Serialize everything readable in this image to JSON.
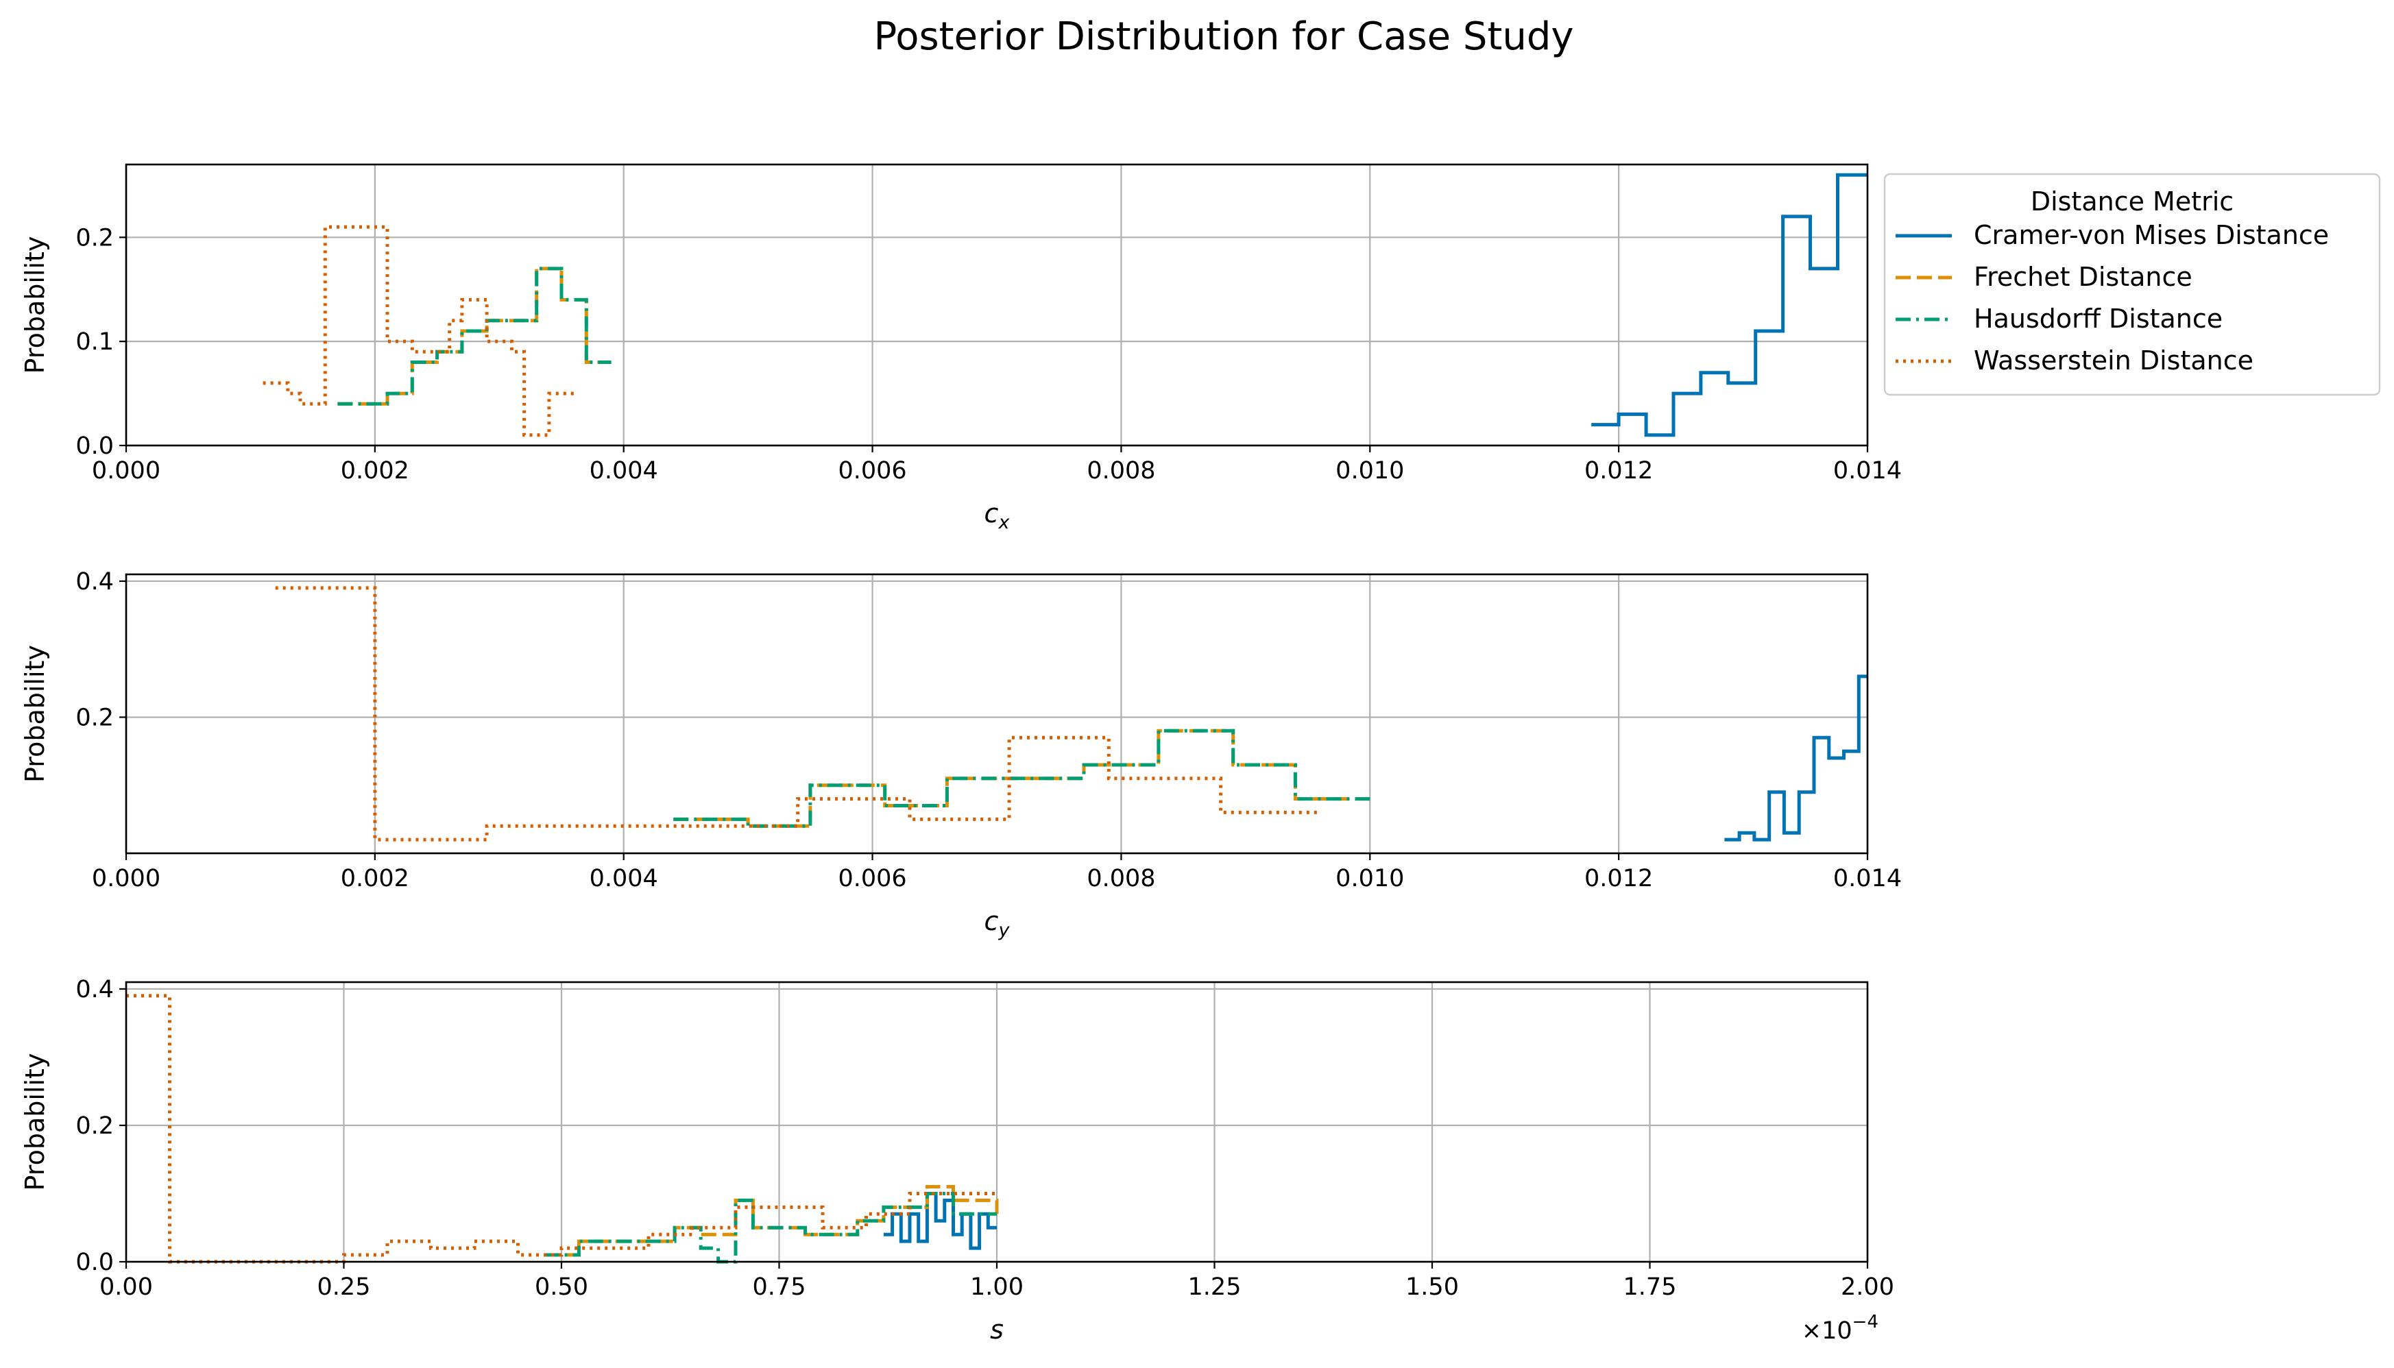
{
  "chart_data": {
    "type": "step",
    "title": "Posterior Distribution for Case Study",
    "legend": {
      "title": "Distance Metric",
      "placement": "outside-right-top",
      "entries": [
        {
          "name": "Cramer-von Mises Distance",
          "color": "#0173b2",
          "dash": "solid"
        },
        {
          "name": "Frechet Distance",
          "color": "#de8f05",
          "dash": "dashed"
        },
        {
          "name": "Hausdorff Distance",
          "color": "#029e73",
          "dash": "dashdot"
        },
        {
          "name": "Wasserstein Distance",
          "color": "#d55e00",
          "dash": "dotted"
        }
      ]
    },
    "subplots": [
      {
        "xlabel": "c",
        "xlabel_sub": "x",
        "ylabel": "Probability",
        "xlim": [
          0,
          0.014
        ],
        "ylim": [
          0,
          0.27
        ],
        "xticks": [
          0,
          0.002,
          0.004,
          0.006,
          0.008,
          0.01,
          0.012,
          0.014
        ],
        "xtick_labels": [
          "0.000",
          "0.002",
          "0.004",
          "0.006",
          "0.008",
          "0.010",
          "0.012",
          "0.014"
        ],
        "yticks": [
          0,
          0.1,
          0.2
        ],
        "ytick_labels": [
          "0.0",
          "0.1",
          "0.2"
        ],
        "grid": true,
        "series": [
          {
            "name": "Cramer-von Mises Distance",
            "x": [
              0.01178,
              0.012,
              0.01222,
              0.01244,
              0.01266,
              0.01288,
              0.0131,
              0.01332,
              0.01354,
              0.01376,
              0.014
            ],
            "y": [
              0.02,
              0.03,
              0.01,
              0.05,
              0.07,
              0.06,
              0.11,
              0.22,
              0.17,
              0.26
            ]
          },
          {
            "name": "Frechet Distance",
            "x": [
              0.0017,
              0.0019,
              0.0021,
              0.0023,
              0.0025,
              0.0027,
              0.0029,
              0.0031,
              0.0033,
              0.0035,
              0.0037,
              0.0039
            ],
            "y": [
              0.04,
              0.04,
              0.05,
              0.08,
              0.09,
              0.11,
              0.12,
              0.12,
              0.17,
              0.14,
              0.08
            ]
          },
          {
            "name": "Hausdorff Distance",
            "x": [
              0.0017,
              0.0019,
              0.0021,
              0.0023,
              0.0025,
              0.0027,
              0.0029,
              0.0031,
              0.0033,
              0.0035,
              0.0037,
              0.0039
            ],
            "y": [
              0.04,
              0.04,
              0.05,
              0.08,
              0.09,
              0.11,
              0.12,
              0.12,
              0.17,
              0.14,
              0.08
            ]
          },
          {
            "name": "Wasserstein Distance",
            "x": [
              0.0011,
              0.0013,
              0.0014,
              0.0016,
              0.0021,
              0.0023,
              0.0026,
              0.0027,
              0.0029,
              0.0031,
              0.0032,
              0.0034,
              0.0036
            ],
            "y": [
              0.06,
              0.05,
              0.04,
              0.21,
              0.1,
              0.09,
              0.12,
              0.14,
              0.1,
              0.09,
              0.01,
              0.05
            ]
          }
        ]
      },
      {
        "xlabel": "c",
        "xlabel_sub": "y",
        "ylabel": "Probability",
        "xlim": [
          0,
          0.014
        ],
        "ylim": [
          0,
          0.41
        ],
        "xticks": [
          0,
          0.002,
          0.004,
          0.006,
          0.008,
          0.01,
          0.012,
          0.014
        ],
        "xtick_labels": [
          "0.000",
          "0.002",
          "0.004",
          "0.006",
          "0.008",
          "0.010",
          "0.012",
          "0.014"
        ],
        "yticks": [
          0.2,
          0.4
        ],
        "ytick_labels": [
          "0.2",
          "0.4"
        ],
        "grid": true,
        "series": [
          {
            "name": "Cramer-von Mises Distance",
            "x": [
              0.01285,
              0.01297,
              0.01309,
              0.01321,
              0.01333,
              0.01345,
              0.01357,
              0.01369,
              0.01381,
              0.01393,
              0.014
            ],
            "y": [
              0.02,
              0.03,
              0.02,
              0.09,
              0.03,
              0.09,
              0.17,
              0.14,
              0.15,
              0.26
            ]
          },
          {
            "name": "Frechet Distance",
            "x": [
              0.0044,
              0.005,
              0.0055,
              0.0061,
              0.0066,
              0.0072,
              0.0077,
              0.0083,
              0.0089,
              0.0094,
              0.01
            ],
            "y": [
              0.05,
              0.04,
              0.1,
              0.07,
              0.11,
              0.11,
              0.13,
              0.18,
              0.13,
              0.08
            ]
          },
          {
            "name": "Hausdorff Distance",
            "x": [
              0.0044,
              0.005,
              0.0055,
              0.0061,
              0.0066,
              0.0072,
              0.0077,
              0.0083,
              0.0089,
              0.0094,
              0.01
            ],
            "y": [
              0.05,
              0.04,
              0.1,
              0.07,
              0.11,
              0.11,
              0.13,
              0.18,
              0.13,
              0.08
            ]
          },
          {
            "name": "Wasserstein Distance",
            "x": [
              0.0012,
              0.002,
              0.0029,
              0.0038,
              0.0046,
              0.0054,
              0.0063,
              0.0071,
              0.0079,
              0.0088,
              0.0096
            ],
            "y": [
              0.39,
              0.02,
              0.04,
              0.04,
              0.04,
              0.08,
              0.05,
              0.17,
              0.11,
              0.06
            ]
          }
        ]
      },
      {
        "xlabel": "s",
        "xlabel_sub": "",
        "ylabel": "Probability",
        "xlim": [
          0,
          2.0
        ],
        "ylim": [
          0,
          0.41
        ],
        "offset_text": "×10",
        "offset_exp": "−4",
        "xticks": [
          0,
          0.25,
          0.5,
          0.75,
          1.0,
          1.25,
          1.5,
          1.75,
          2.0
        ],
        "xtick_labels": [
          "0.00",
          "0.25",
          "0.50",
          "0.75",
          "1.00",
          "1.25",
          "1.50",
          "1.75",
          "2.00"
        ],
        "yticks": [
          0,
          0.2,
          0.4
        ],
        "ytick_labels": [
          "0.0",
          "0.2",
          "0.4"
        ],
        "grid": true,
        "series": [
          {
            "name": "Cramer-von Mises Distance",
            "x": [
              0.87,
              0.88,
              0.89,
              0.9,
              0.91,
              0.92,
              0.93,
              0.94,
              0.95,
              0.96,
              0.97,
              0.98,
              0.99,
              1.0
            ],
            "y": [
              0.04,
              0.07,
              0.03,
              0.07,
              0.03,
              0.1,
              0.06,
              0.09,
              0.04,
              0.07,
              0.02,
              0.07,
              0.05
            ]
          },
          {
            "name": "Frechet Distance",
            "x": [
              0.48,
              0.52,
              0.6,
              0.63,
              0.66,
              0.7,
              0.72,
              0.75,
              0.78,
              0.84,
              0.87,
              0.92,
              0.95,
              1.0
            ],
            "y": [
              0.01,
              0.03,
              0.03,
              0.05,
              0.04,
              0.09,
              0.05,
              0.05,
              0.04,
              0.06,
              0.08,
              0.11,
              0.09,
              0.07
            ]
          },
          {
            "name": "Hausdorff Distance",
            "x": [
              0.48,
              0.52,
              0.6,
              0.63,
              0.66,
              0.68,
              0.7,
              0.72,
              0.75,
              0.78,
              0.84,
              0.87,
              0.92,
              0.95,
              1.0
            ],
            "y": [
              0.01,
              0.03,
              0.03,
              0.05,
              0.02,
              0.0,
              0.09,
              0.05,
              0.05,
              0.04,
              0.06,
              0.08,
              0.1,
              0.07
            ]
          },
          {
            "name": "Wasserstein Distance",
            "x": [
              0,
              0.05,
              0.1,
              0.25,
              0.3,
              0.35,
              0.4,
              0.45,
              0.5,
              0.55,
              0.6,
              0.65,
              0.7,
              0.75,
              0.8,
              0.85,
              0.9,
              0.95,
              1.0
            ],
            "y": [
              0.39,
              0.0,
              0.0,
              0.01,
              0.03,
              0.02,
              0.03,
              0.01,
              0.02,
              0.02,
              0.04,
              0.05,
              0.08,
              0.08,
              0.05,
              0.07,
              0.1,
              0.1
            ]
          }
        ]
      }
    ]
  }
}
